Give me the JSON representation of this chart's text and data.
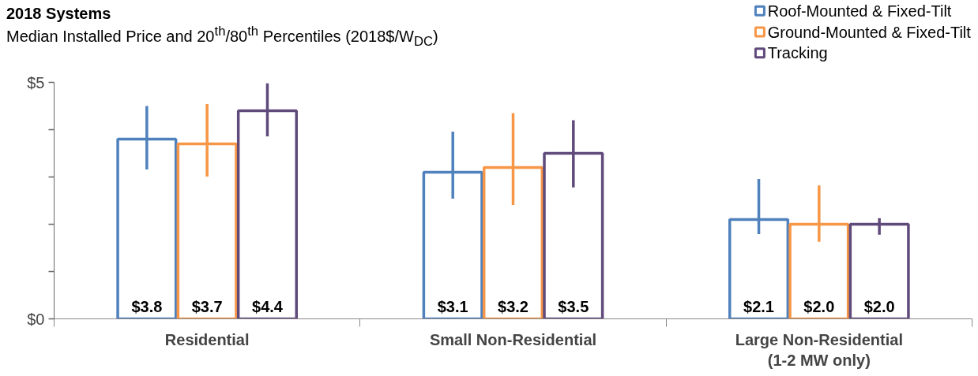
{
  "chart_data": {
    "type": "bar",
    "title": "2018 Systems",
    "subtitle": "Median Installed Price and 20$^{th}$/80$^{th}$ Percentiles (2018$/W$_{DC}$)",
    "categories": [
      "Residential",
      "Small Non-Residential",
      "Large Non-Residential\n(1-2 MW only)"
    ],
    "series": [
      {
        "name": "Roof-Mounted & Fixed-Tilt",
        "color": "#4f81bd",
        "values": [
          3.8,
          3.1,
          2.1
        ],
        "value_labels": [
          "$3.8",
          "$3.1",
          "$2.1"
        ],
        "errors": [
          [
            3.16,
            4.5
          ],
          [
            2.54,
            3.96
          ],
          [
            1.79,
            2.96
          ]
        ]
      },
      {
        "name": "Ground-Mounted & Fixed-Tilt",
        "color": "#f79646",
        "values": [
          3.7,
          3.2,
          2.0
        ],
        "value_labels": [
          "$3.7",
          "$3.2",
          "$2.0"
        ],
        "errors": [
          [
            3.01,
            4.54
          ],
          [
            2.41,
            4.35
          ],
          [
            1.63,
            2.82
          ]
        ]
      },
      {
        "name": "Tracking",
        "color": "#604a7b",
        "values": [
          4.4,
          3.5,
          2.0
        ],
        "value_labels": [
          "$4.4",
          "$3.5",
          "$2.0"
        ],
        "errors": [
          [
            3.86,
            4.98
          ],
          [
            2.78,
            4.2
          ],
          [
            1.78,
            2.13
          ]
        ]
      }
    ],
    "ylim": [
      0,
      5
    ],
    "yticks": [
      {
        "value": 0,
        "label": "$0"
      },
      {
        "value": 1,
        "label": null
      },
      {
        "value": 2,
        "label": null
      },
      {
        "value": 3,
        "label": null
      },
      {
        "value": 4,
        "label": null
      },
      {
        "value": 5,
        "label": "$5"
      }
    ],
    "grid": false,
    "legend": "top right"
  }
}
